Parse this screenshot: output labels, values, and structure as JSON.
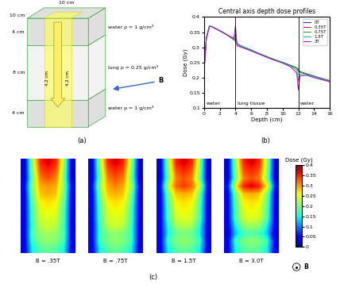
{
  "diagram": {
    "label": "(a)",
    "width": "10 cm",
    "depth": "10 cm",
    "beam_width": "4.2 cm",
    "beam_depth": "4.2 cm",
    "field": "B",
    "layers": [
      {
        "thickness": "4 cm",
        "text": "water ρ = 1 g/cm³"
      },
      {
        "thickness": "8 cm",
        "text": "lung ρ = 0.25 g/cm³"
      },
      {
        "thickness": "4 cm",
        "text": "water ρ = 1 g/cm³"
      }
    ]
  },
  "chart_data": {
    "type": "line",
    "label": "(b)",
    "title": "Central axis depth dose profiles",
    "x_label": "Depth (cm)",
    "y_label": "Dose (Gy)",
    "x": [
      0,
      0.3,
      0.7,
      1,
      2,
      3,
      3.8,
      4,
      4.2,
      5,
      6,
      7,
      8,
      9,
      10,
      11,
      11.8,
      12,
      12.2,
      13,
      14,
      15,
      16
    ],
    "xlim": [
      0,
      16
    ],
    "xticks": [
      0,
      2,
      4,
      6,
      8,
      10,
      12,
      14,
      16
    ],
    "ylim": [
      0.1,
      0.4
    ],
    "yticks": [
      0.1,
      0.15,
      0.2,
      0.25,
      0.3,
      0.35,
      0.4
    ],
    "legend": "upper right",
    "boundaries": [
      4,
      12
    ],
    "regions": [
      "water",
      "lung tissue",
      "water"
    ],
    "series": [
      {
        "name": "0T",
        "color": "#1f1fbf",
        "values": [
          0.22,
          0.33,
          0.37,
          0.368,
          0.355,
          0.34,
          0.325,
          0.322,
          0.31,
          0.3,
          0.29,
          0.278,
          0.268,
          0.258,
          0.25,
          0.24,
          0.232,
          0.228,
          0.22,
          0.213,
          0.205,
          0.197,
          0.19
        ]
      },
      {
        "name": "0.35T",
        "color": "#e02020",
        "values": [
          0.22,
          0.33,
          0.37,
          0.368,
          0.355,
          0.34,
          0.326,
          0.325,
          0.31,
          0.3,
          0.29,
          0.279,
          0.268,
          0.258,
          0.25,
          0.24,
          0.232,
          0.226,
          0.219,
          0.213,
          0.205,
          0.197,
          0.19
        ]
      },
      {
        "name": "0.75T",
        "color": "#20a020",
        "values": [
          0.22,
          0.33,
          0.37,
          0.368,
          0.355,
          0.34,
          0.327,
          0.33,
          0.312,
          0.302,
          0.292,
          0.28,
          0.27,
          0.26,
          0.251,
          0.241,
          0.232,
          0.22,
          0.218,
          0.212,
          0.204,
          0.196,
          0.189
        ]
      },
      {
        "name": "1.5T",
        "color": "#00bfbf",
        "values": [
          0.22,
          0.33,
          0.37,
          0.368,
          0.355,
          0.34,
          0.328,
          0.345,
          0.31,
          0.3,
          0.29,
          0.279,
          0.268,
          0.258,
          0.249,
          0.238,
          0.225,
          0.19,
          0.212,
          0.21,
          0.203,
          0.195,
          0.188
        ]
      },
      {
        "name": "3T",
        "color": "#bf00bf",
        "values": [
          0.22,
          0.33,
          0.37,
          0.368,
          0.355,
          0.34,
          0.33,
          0.372,
          0.305,
          0.298,
          0.288,
          0.278,
          0.267,
          0.257,
          0.248,
          0.236,
          0.215,
          0.16,
          0.205,
          0.208,
          0.2,
          0.193,
          0.186
        ]
      }
    ]
  },
  "dose_maps": {
    "label": "(c)",
    "field": "B",
    "colorbar": {
      "title": "Dose (Gy)",
      "range": [
        0,
        0.4
      ],
      "ticks": [
        0,
        0.05,
        0.1,
        0.15,
        0.2,
        0.25,
        0.3,
        0.35,
        0.4
      ]
    },
    "maps": [
      {
        "title": "B = .35T",
        "cells": [
          [
            0.03,
            0.22,
            0.35,
            0.37,
            0.35,
            0.22,
            0.03
          ],
          [
            0.03,
            0.21,
            0.33,
            0.35,
            0.33,
            0.21,
            0.03
          ],
          [
            0.03,
            0.2,
            0.31,
            0.33,
            0.31,
            0.2,
            0.03
          ],
          [
            0.05,
            0.21,
            0.29,
            0.3,
            0.29,
            0.21,
            0.05
          ],
          [
            0.04,
            0.2,
            0.28,
            0.29,
            0.28,
            0.2,
            0.04
          ],
          [
            0.04,
            0.19,
            0.26,
            0.27,
            0.26,
            0.19,
            0.04
          ],
          [
            0.04,
            0.18,
            0.25,
            0.26,
            0.25,
            0.18,
            0.04
          ],
          [
            0.04,
            0.18,
            0.24,
            0.25,
            0.24,
            0.18,
            0.04
          ],
          [
            0.04,
            0.17,
            0.23,
            0.24,
            0.23,
            0.17,
            0.04
          ],
          [
            0.04,
            0.18,
            0.21,
            0.22,
            0.21,
            0.18,
            0.04
          ],
          [
            0.04,
            0.17,
            0.2,
            0.21,
            0.2,
            0.17,
            0.04
          ],
          [
            0.04,
            0.15,
            0.18,
            0.19,
            0.18,
            0.15,
            0.04
          ]
        ]
      },
      {
        "title": "B = .75T",
        "cells": [
          [
            0.03,
            0.22,
            0.35,
            0.37,
            0.35,
            0.22,
            0.03
          ],
          [
            0.03,
            0.21,
            0.33,
            0.35,
            0.33,
            0.21,
            0.03
          ],
          [
            0.03,
            0.2,
            0.31,
            0.33,
            0.31,
            0.2,
            0.03
          ],
          [
            0.05,
            0.22,
            0.29,
            0.31,
            0.29,
            0.22,
            0.05
          ],
          [
            0.04,
            0.2,
            0.28,
            0.29,
            0.28,
            0.2,
            0.04
          ],
          [
            0.04,
            0.19,
            0.26,
            0.27,
            0.26,
            0.19,
            0.04
          ],
          [
            0.04,
            0.18,
            0.25,
            0.26,
            0.25,
            0.18,
            0.04
          ],
          [
            0.04,
            0.18,
            0.24,
            0.25,
            0.24,
            0.18,
            0.04
          ],
          [
            0.04,
            0.17,
            0.23,
            0.24,
            0.23,
            0.17,
            0.04
          ],
          [
            0.04,
            0.17,
            0.2,
            0.21,
            0.2,
            0.17,
            0.04
          ],
          [
            0.04,
            0.17,
            0.2,
            0.21,
            0.2,
            0.17,
            0.04
          ],
          [
            0.04,
            0.15,
            0.18,
            0.19,
            0.18,
            0.15,
            0.04
          ]
        ]
      },
      {
        "title": "B = 1.5T",
        "cells": [
          [
            0.03,
            0.22,
            0.35,
            0.37,
            0.35,
            0.22,
            0.03
          ],
          [
            0.03,
            0.21,
            0.33,
            0.35,
            0.33,
            0.21,
            0.03
          ],
          [
            0.03,
            0.2,
            0.31,
            0.33,
            0.31,
            0.2,
            0.03
          ],
          [
            0.05,
            0.24,
            0.32,
            0.34,
            0.32,
            0.24,
            0.05
          ],
          [
            0.04,
            0.2,
            0.28,
            0.29,
            0.28,
            0.2,
            0.04
          ],
          [
            0.04,
            0.19,
            0.26,
            0.27,
            0.26,
            0.19,
            0.04
          ],
          [
            0.04,
            0.18,
            0.25,
            0.26,
            0.25,
            0.18,
            0.04
          ],
          [
            0.04,
            0.18,
            0.24,
            0.25,
            0.24,
            0.18,
            0.04
          ],
          [
            0.04,
            0.16,
            0.22,
            0.23,
            0.22,
            0.16,
            0.04
          ],
          [
            0.04,
            0.15,
            0.19,
            0.2,
            0.19,
            0.15,
            0.04
          ],
          [
            0.04,
            0.17,
            0.2,
            0.21,
            0.2,
            0.17,
            0.04
          ],
          [
            0.04,
            0.15,
            0.18,
            0.19,
            0.18,
            0.15,
            0.04
          ]
        ]
      },
      {
        "title": "B = 3.0T",
        "cells": [
          [
            0.03,
            0.22,
            0.35,
            0.37,
            0.35,
            0.22,
            0.03
          ],
          [
            0.03,
            0.21,
            0.33,
            0.35,
            0.33,
            0.21,
            0.03
          ],
          [
            0.03,
            0.2,
            0.31,
            0.33,
            0.31,
            0.2,
            0.03
          ],
          [
            0.06,
            0.26,
            0.35,
            0.37,
            0.35,
            0.26,
            0.06
          ],
          [
            0.04,
            0.2,
            0.28,
            0.29,
            0.28,
            0.2,
            0.04
          ],
          [
            0.04,
            0.19,
            0.26,
            0.27,
            0.26,
            0.19,
            0.04
          ],
          [
            0.04,
            0.18,
            0.25,
            0.26,
            0.25,
            0.18,
            0.04
          ],
          [
            0.04,
            0.18,
            0.24,
            0.25,
            0.24,
            0.18,
            0.04
          ],
          [
            0.04,
            0.15,
            0.21,
            0.22,
            0.21,
            0.15,
            0.04
          ],
          [
            0.03,
            0.13,
            0.17,
            0.18,
            0.17,
            0.13,
            0.03
          ],
          [
            0.04,
            0.17,
            0.2,
            0.21,
            0.2,
            0.17,
            0.04
          ],
          [
            0.04,
            0.15,
            0.18,
            0.19,
            0.18,
            0.15,
            0.04
          ]
        ]
      }
    ]
  }
}
